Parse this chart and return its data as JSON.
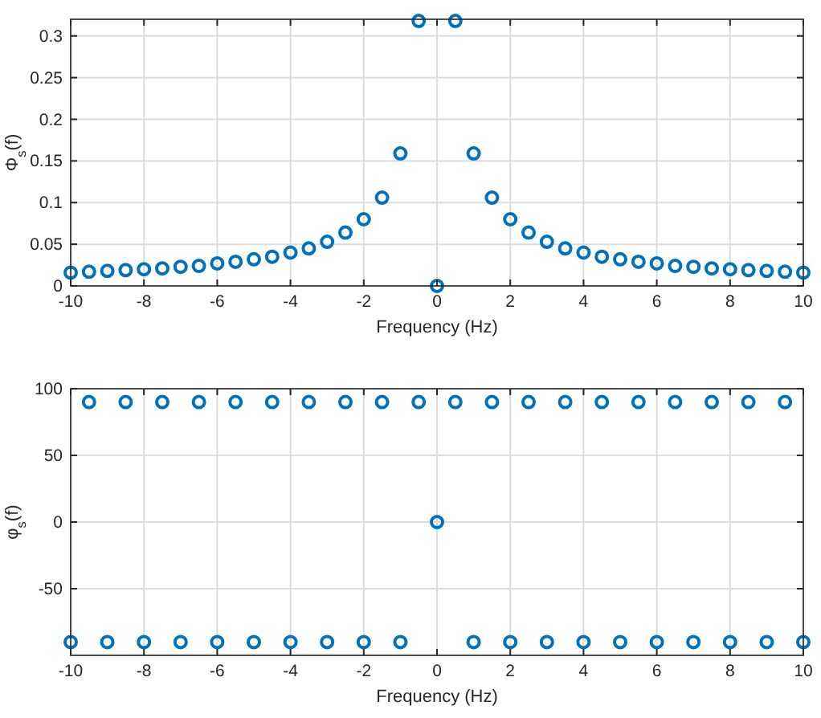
{
  "chart_data": [
    {
      "type": "scatter",
      "xlabel": "Frequency (Hz)",
      "ylabel": "Φ$_{s}$(f)",
      "marker": "circle",
      "grid": true,
      "x": [
        -10,
        -9.5,
        -9,
        -8.5,
        -8,
        -7.5,
        -7,
        -6.5,
        -6,
        -5.5,
        -5,
        -4.5,
        -4,
        -3.5,
        -3,
        -2.5,
        -2,
        -1.5,
        -1,
        -0.5,
        0,
        0.5,
        1,
        1.5,
        2,
        2.5,
        3,
        3.5,
        4,
        4.5,
        5,
        5.5,
        6,
        6.5,
        7,
        7.5,
        8,
        8.5,
        9,
        9.5,
        10
      ],
      "series": [
        {
          "color": "#0072bd",
          "values": [
            0.016,
            0.017,
            0.018,
            0.019,
            0.02,
            0.021,
            0.023,
            0.024,
            0.027,
            0.029,
            0.032,
            0.035,
            0.04,
            0.045,
            0.053,
            0.064,
            0.08,
            0.106,
            0.159,
            0.318,
            0,
            0.318,
            0.159,
            0.106,
            0.08,
            0.064,
            0.053,
            0.045,
            0.04,
            0.035,
            0.032,
            0.029,
            0.027,
            0.024,
            0.023,
            0.021,
            0.02,
            0.019,
            0.018,
            0.017,
            0.016
          ]
        }
      ],
      "xlim": [
        -10,
        10
      ],
      "xticks": [
        -10,
        -8,
        -6,
        -4,
        -2,
        0,
        2,
        4,
        6,
        8,
        10
      ],
      "ylim": [
        0,
        0.32
      ],
      "yticks": [
        0,
        0.05,
        0.1,
        0.15,
        0.2,
        0.25,
        0.3
      ]
    },
    {
      "type": "scatter",
      "xlabel": "Frequency (Hz)",
      "ylabel": "φ$_{s}$(f)",
      "marker": "circle",
      "grid": true,
      "x": [
        -10,
        -9.5,
        -9,
        -8.5,
        -8,
        -7.5,
        -7,
        -6.5,
        -6,
        -5.5,
        -5,
        -4.5,
        -4,
        -3.5,
        -3,
        -2.5,
        -2,
        -1.5,
        -1,
        -0.5,
        0,
        0.5,
        1,
        1.5,
        2,
        2.5,
        3,
        3.5,
        4,
        4.5,
        5,
        5.5,
        6,
        6.5,
        7,
        7.5,
        8,
        8.5,
        9,
        9.5,
        10
      ],
      "series": [
        {
          "color": "#0072bd",
          "values": [
            -90,
            90,
            -90,
            90,
            -90,
            90,
            -90,
            90,
            -90,
            90,
            -90,
            90,
            -90,
            90,
            -90,
            90,
            -90,
            90,
            -90,
            90,
            0,
            90,
            -90,
            90,
            -90,
            90,
            -90,
            90,
            -90,
            90,
            -90,
            90,
            -90,
            90,
            -90,
            90,
            -90,
            90,
            -90,
            90,
            -90
          ]
        }
      ],
      "xlim": [
        -10,
        10
      ],
      "xticks": [
        -10,
        -8,
        -6,
        -4,
        -2,
        0,
        2,
        4,
        6,
        8,
        10
      ],
      "ylim": [
        -100,
        100
      ],
      "yticks": [
        -50,
        0,
        50,
        100
      ]
    }
  ]
}
